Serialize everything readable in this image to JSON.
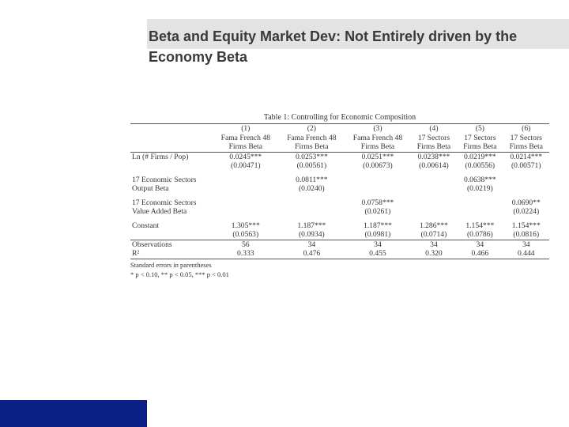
{
  "slide": {
    "title": "Beta and Equity Market Dev: Not Entirely driven by the Economy Beta",
    "colors": {
      "title_band": "#e3e3e3",
      "corner_block": "#0c1f86",
      "title_text": "#3a3a3a"
    }
  },
  "table": {
    "caption": "Table 1: Controlling for Economic Composition",
    "columns": [
      {
        "num": "(1)",
        "line1": "Fama French 48",
        "line2": "Firms Beta"
      },
      {
        "num": "(2)",
        "line1": "Fama French 48",
        "line2": "Firms Beta"
      },
      {
        "num": "(3)",
        "line1": "Fama French 48",
        "line2": "Firms Beta"
      },
      {
        "num": "(4)",
        "line1": "17 Sectors",
        "line2": "Firms Beta"
      },
      {
        "num": "(5)",
        "line1": "17 Sectors",
        "line2": "Firms Beta"
      },
      {
        "num": "(6)",
        "line1": "17 Sectors",
        "line2": "Firms Beta"
      }
    ],
    "rows": {
      "ln_firms": {
        "label": "Ln (# Firms / Pop)",
        "coef": [
          "0.0245***",
          "0.0253***",
          "0.0251***",
          "0.0238***",
          "0.0219***",
          "0.0214***"
        ],
        "se": [
          "(0.00471)",
          "(0.00561)",
          "(0.00673)",
          "(0.00614)",
          "(0.00556)",
          "(0.00571)"
        ]
      },
      "output_beta": {
        "label1": "17 Economic Sectors",
        "label2": "Output Beta",
        "coef": [
          "",
          "0.0811***",
          "",
          "",
          "0.0638***",
          ""
        ],
        "se": [
          "",
          "(0.0240)",
          "",
          "",
          "(0.0219)",
          ""
        ]
      },
      "value_added": {
        "label1": "17 Economic Sectors",
        "label2": "Value Added Beta",
        "coef": [
          "",
          "",
          "0.0758***",
          "",
          "",
          "0.0690**"
        ],
        "se": [
          "",
          "",
          "(0.0261)",
          "",
          "",
          "(0.0224)"
        ]
      },
      "constant": {
        "label": "Constant",
        "coef": [
          "1.305***",
          "1.187***",
          "1.187***",
          "1.286***",
          "1.154***",
          "1.154***"
        ],
        "se": [
          "(0.0563)",
          "(0.0934)",
          "(0.0981)",
          "(0.0714)",
          "(0.0786)",
          "(0.0816)"
        ]
      },
      "observations": {
        "label": "Observations",
        "values": [
          "56",
          "34",
          "34",
          "34",
          "34",
          "34"
        ]
      },
      "r2": {
        "label": "R²",
        "values": [
          "0.333",
          "0.476",
          "0.455",
          "0.320",
          "0.466",
          "0.444"
        ]
      }
    },
    "notes": {
      "line1": "Standard errors in parentheses",
      "line2": "* p < 0.10, ** p < 0.05, *** p < 0.01"
    }
  }
}
